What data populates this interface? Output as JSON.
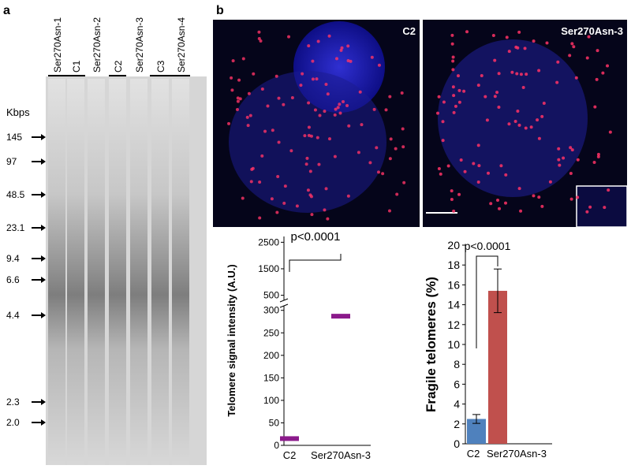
{
  "panel_a": {
    "label": "a",
    "lanes": [
      "Ser270Asn-1",
      "C1",
      "Ser270Asn-2",
      "C2",
      "Ser270Asn-3",
      "C3",
      "Ser270Asn-4"
    ],
    "size_unit": "Kbps",
    "size_markers": [
      "145",
      "97",
      "48.5",
      "23.1",
      "9.4",
      "6.6",
      "4.4",
      "2.3",
      "2.0"
    ]
  },
  "panel_b": {
    "label": "b",
    "images": [
      "C2",
      "Ser270Asn-3"
    ]
  },
  "chart_data": [
    {
      "type": "strip",
      "ylabel": "Telomere signal intensity (A.U.)",
      "annotation": "p<0.0001",
      "categories": [
        "C2",
        "Ser270Asn-3"
      ],
      "values": [
        15,
        287
      ],
      "color": "#8b1a8b",
      "ylim": [
        0,
        310
      ],
      "yticks": [
        0,
        50,
        100,
        150,
        200,
        250,
        300
      ],
      "ylim_upper": [
        250,
        2600
      ],
      "yticks_upper": [
        500,
        1500,
        2500
      ]
    },
    {
      "type": "bar",
      "ylabel": "Fragile telomeres (%)",
      "annotation": "p<0.0001",
      "categories": [
        "C2",
        "Ser270Asn-3"
      ],
      "values": [
        2.5,
        15.4
      ],
      "errors": [
        0.45,
        2.2
      ],
      "colors": [
        "#4f81bd",
        "#c0504d"
      ],
      "ylim": [
        0,
        20
      ],
      "yticks": [
        0,
        2,
        4,
        6,
        8,
        10,
        12,
        14,
        16,
        18,
        20
      ]
    }
  ]
}
